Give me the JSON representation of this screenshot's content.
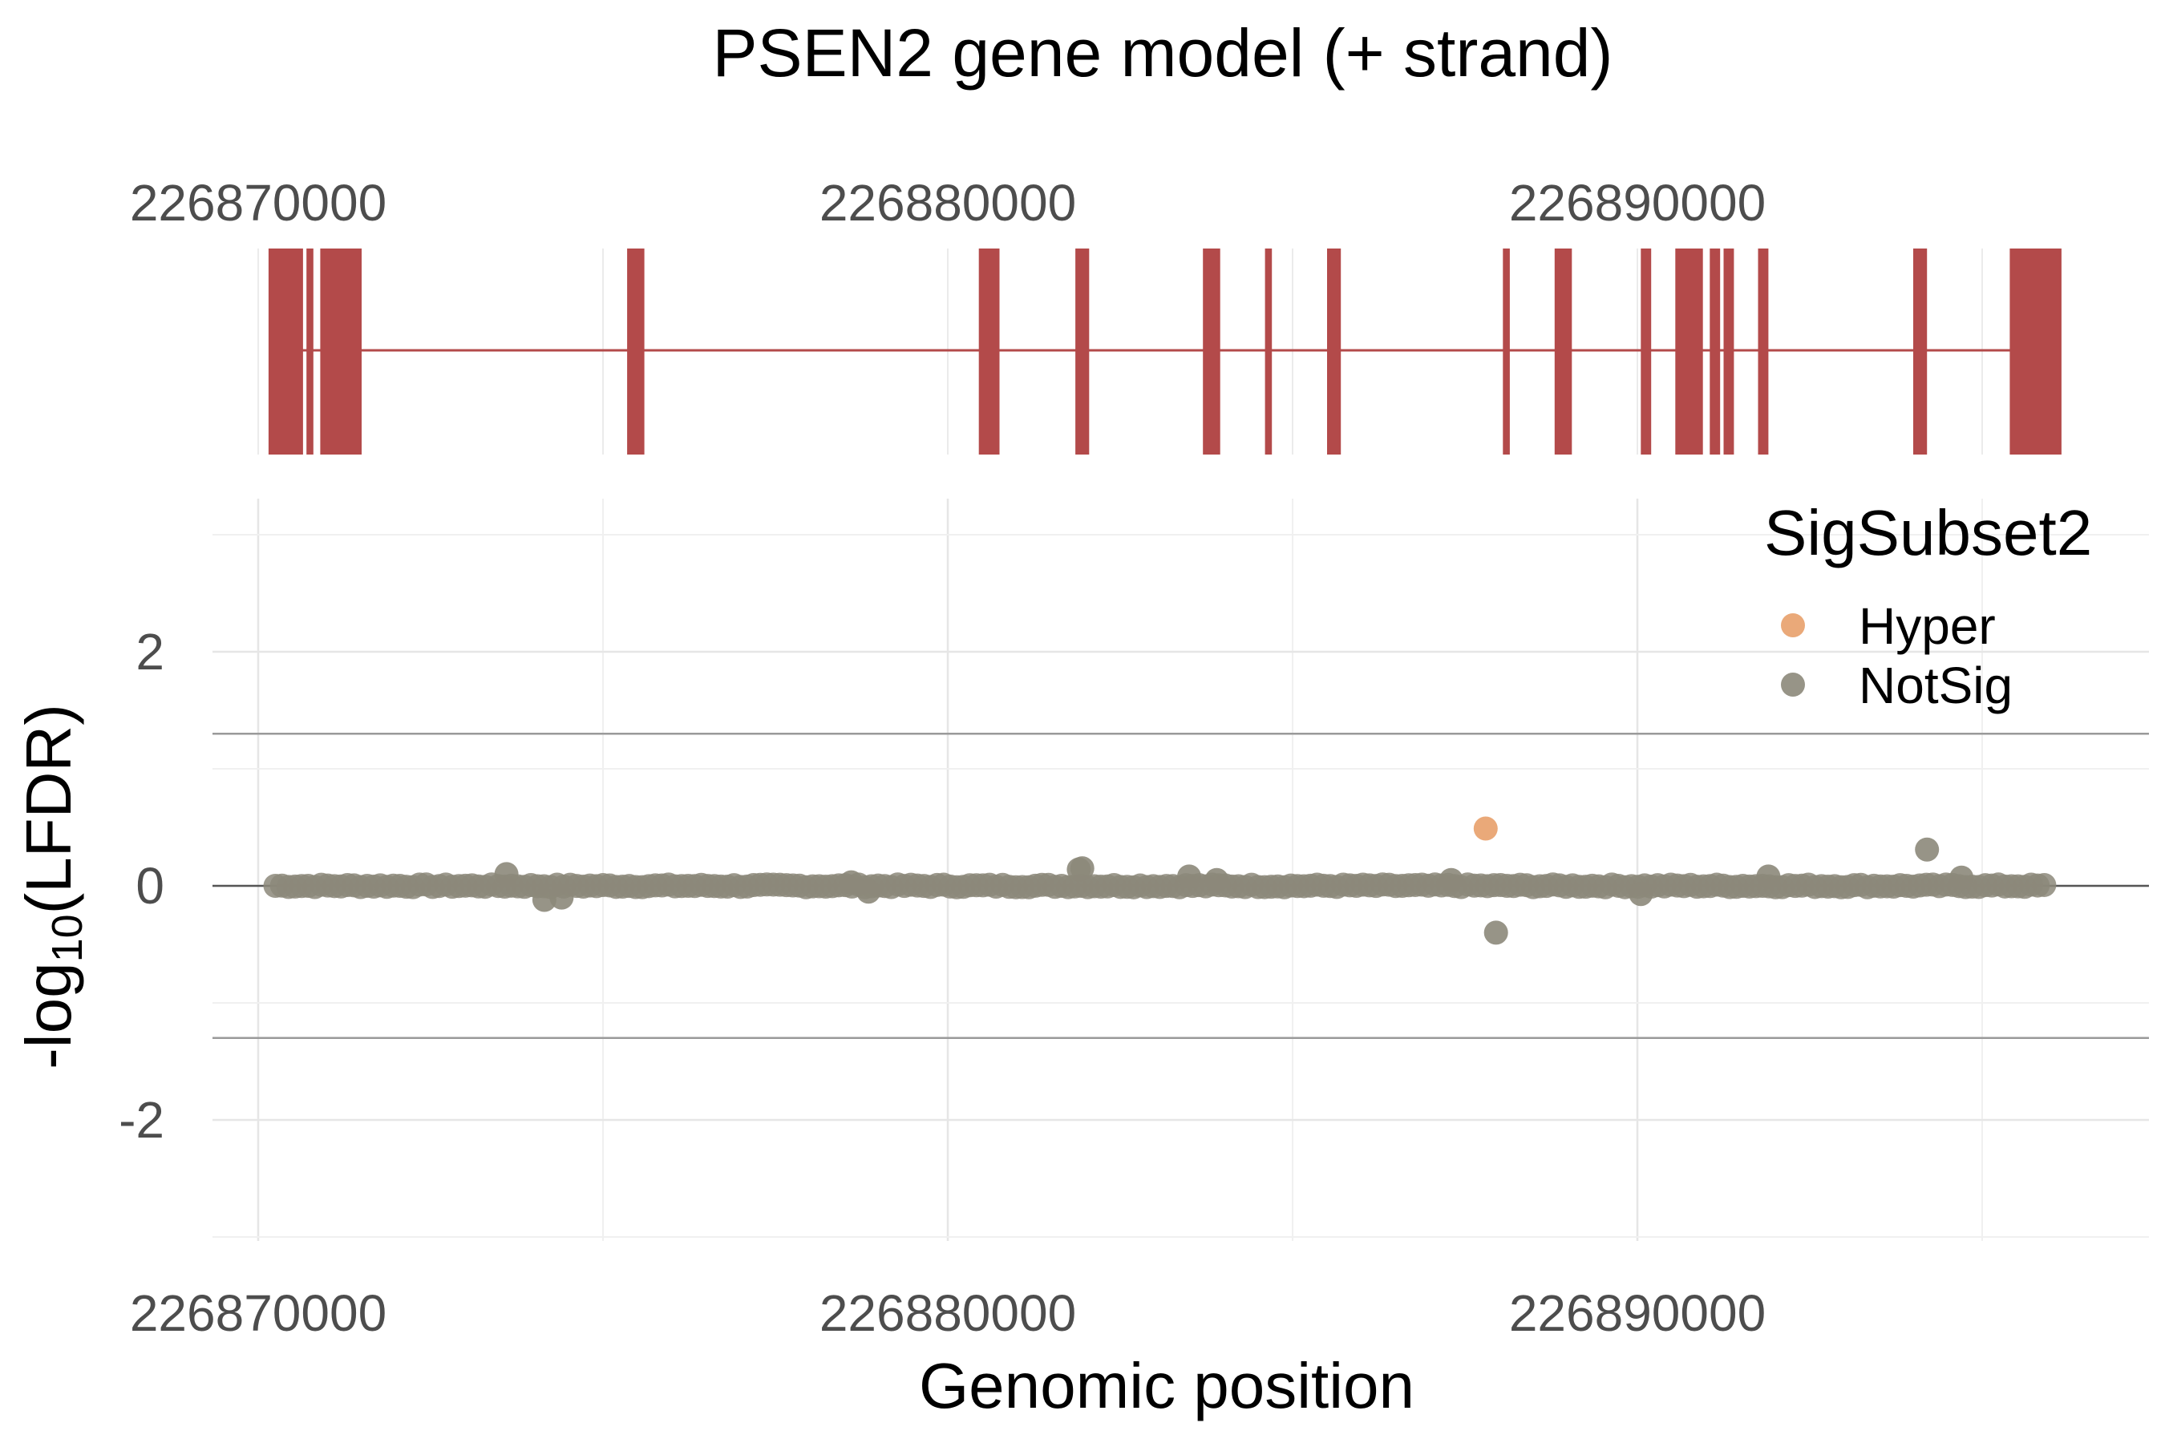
{
  "chart_data": [
    {
      "type": "gene-model",
      "title": "PSEN2 gene model (+ strand)",
      "xlim": [
        226865000,
        226899500
      ],
      "x_ticks": [
        226870000,
        226880000,
        226890000
      ],
      "x_tick_labels": [
        "226870000",
        "226880000",
        "226890000"
      ],
      "gene_span": [
        226870200,
        226896100
      ],
      "exon_color": "#b34a4a",
      "exons": [
        [
          226870150,
          226870650
        ],
        [
          226870700,
          226870800
        ],
        [
          226870900,
          226871500
        ],
        [
          226875350,
          226875600
        ],
        [
          226880450,
          226880750
        ],
        [
          226881850,
          226882050
        ],
        [
          226883700,
          226883950
        ],
        [
          226884600,
          226884700
        ],
        [
          226885500,
          226885700
        ],
        [
          226888050,
          226888150
        ],
        [
          226888800,
          226889050
        ],
        [
          226890050,
          226890200
        ],
        [
          226890550,
          226890950
        ],
        [
          226891050,
          226891200
        ],
        [
          226891250,
          226891400
        ],
        [
          226891750,
          226891900
        ],
        [
          226894000,
          226894200
        ],
        [
          226895400,
          226896150
        ]
      ]
    },
    {
      "type": "scatter",
      "xlabel": "Genomic position",
      "ylabel": "-log10(LFDR)",
      "ylabel_base": "-log",
      "ylabel_sub": "10",
      "ylabel_rest": "(LFDR)",
      "xlim": [
        226865000,
        226899500
      ],
      "ylim": [
        -3.0,
        3.0
      ],
      "x_ticks": [
        226870000,
        226880000,
        226890000
      ],
      "x_tick_labels": [
        "226870000",
        "226880000",
        "226890000"
      ],
      "y_ticks": [
        -2,
        0,
        2
      ],
      "y_tick_labels": [
        "-2",
        "0",
        "2"
      ],
      "threshold_lines": [
        1.3,
        -1.3
      ],
      "grid": true,
      "legend": {
        "title": "SigSubset2",
        "position": "top-right",
        "entries": [
          {
            "label": "Hyper",
            "color": "#e8a06a"
          },
          {
            "label": "NotSig",
            "color": "#8c887a"
          }
        ]
      },
      "baseline_range": [
        226870250,
        226895950
      ],
      "series": [
        {
          "name": "Hyper",
          "color": "#e8a06a",
          "points": [
            [
              226887800,
              0.49
            ]
          ]
        },
        {
          "name": "NotSig",
          "color": "#8c887a",
          "points": [
            [
              226873600,
              0.1
            ],
            [
              226874150,
              -0.12
            ],
            [
              226874400,
              -0.1
            ],
            [
              226878600,
              0.03
            ],
            [
              226878850,
              -0.05
            ],
            [
              226881950,
              0.15
            ],
            [
              226881900,
              0.14
            ],
            [
              226883500,
              0.08
            ],
            [
              226883900,
              0.05
            ],
            [
              226887300,
              0.05
            ],
            [
              226887950,
              -0.4
            ],
            [
              226890050,
              -0.07
            ],
            [
              226891900,
              0.08
            ],
            [
              226894200,
              0.31
            ],
            [
              226894700,
              0.07
            ]
          ]
        }
      ]
    }
  ]
}
